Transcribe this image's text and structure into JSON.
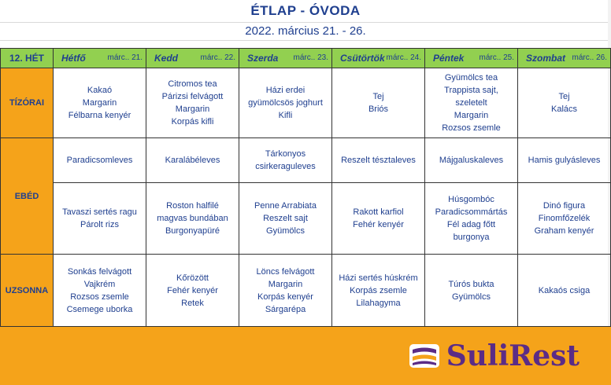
{
  "title": "ÉTLAP - ÓVODA",
  "subtitle": "2022. március 21. - 26.",
  "week": "12. HÉT",
  "days": [
    {
      "name": "Hétfő",
      "date": "márc.. 21."
    },
    {
      "name": "Kedd",
      "date": "márc.. 22."
    },
    {
      "name": "Szerda",
      "date": "márc.. 23."
    },
    {
      "name": "Csütörtök",
      "date": "márc.. 24."
    },
    {
      "name": "Péntek",
      "date": "márc.. 25."
    },
    {
      "name": "Szombat",
      "date": "márc.. 26."
    }
  ],
  "meals": {
    "tizorai": "TÍZÓRAI",
    "ebed": "EBÉD",
    "uzsonna": "UZSONNA"
  },
  "menu": {
    "tizorai": [
      [
        "Kakaó",
        "Margarin",
        "Félbarna kenyér"
      ],
      [
        "Citromos tea",
        "Párizsi felvágott",
        "Margarin",
        "Korpás kifli"
      ],
      [
        "Házi erdei",
        "gyümölcsös joghurt",
        "Kifli"
      ],
      [
        "Tej",
        "Briós"
      ],
      [
        "Gyümölcs tea",
        "Trappista sajt,",
        "szeletelt",
        "Margarin",
        "Rozsos zsemle"
      ],
      [
        "Tej",
        "Kalács"
      ]
    ],
    "ebed_leves": [
      [
        "Paradicsomleves"
      ],
      [
        "Karalábéleves"
      ],
      [
        "Tárkonyos",
        "csirkeraguleves"
      ],
      [
        "Reszelt tésztaleves"
      ],
      [
        "Májgaluskaleves"
      ],
      [
        "Hamis gulyásleves"
      ]
    ],
    "ebed_fo": [
      [
        "Tavaszi sertés ragu",
        "Párolt rizs"
      ],
      [
        "Roston halfilé",
        "magvas bundában",
        "Burgonyapüré"
      ],
      [
        "Penne Arrabiata",
        "Reszelt sajt",
        "Gyümölcs"
      ],
      [
        "Rakott karfiol",
        "Fehér kenyér"
      ],
      [
        "Húsgombóc",
        "Paradicsommártás",
        "Fél adag főtt",
        "burgonya"
      ],
      [
        "Dinó figura",
        "Finomfőzelék",
        "Graham kenyér"
      ]
    ],
    "uzsonna": [
      [
        "Sonkás felvágott",
        "Vajkrém",
        "Rozsos zsemle",
        "Csemege uborka"
      ],
      [
        "Kőrözött",
        "Fehér kenyér",
        "Retek"
      ],
      [
        "Löncs felvágott",
        "Margarin",
        "Korpás kenyér",
        "Sárgarépa"
      ],
      [
        "Házi sertés húskrém",
        "Korpás zsemle",
        "Lilahagyma"
      ],
      [
        "Túrós bukta",
        "Gyümölcs"
      ],
      [
        "Kakaós csiga"
      ]
    ]
  },
  "logo": {
    "text": "SuliRest",
    "color": "#5b2c86"
  },
  "colors": {
    "header_green": "#92d050",
    "meal_orange": "#f5a31a",
    "text_blue": "#1f3f8f"
  }
}
